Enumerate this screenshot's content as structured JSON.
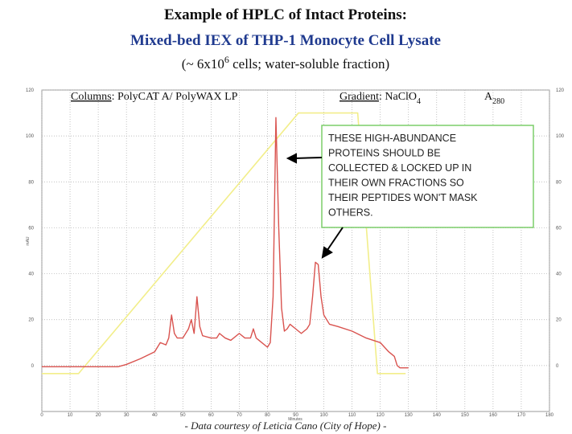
{
  "chart_data": {
    "type": "line",
    "title": "Example of HPLC of Intact Proteins:",
    "subtitle": "Mixed-bed IEX of THP-1 Monocyte Cell Lysate",
    "note": {
      "pre": "(~ 6x10",
      "sup": "6",
      "post": " cells; water-soluble fraction)"
    },
    "header": {
      "columns_label": "Columns",
      "columns_text": ": PolyCAT A/ PolyWAX LP",
      "gradient_label": "Gradient",
      "gradient_text": ": NaClO",
      "gradient_sub": "4",
      "absorbance": "A",
      "absorbance_sub": "280"
    },
    "annotation": [
      "THESE HIGH-ABUNDANCE",
      "PROTEINS SHOULD BE",
      "COLLECTED & LOCKED UP IN",
      "THEIR OWN FRACTIONS SO",
      "THEIR PEPTIDES WON'T MASK",
      "OTHERS."
    ],
    "x_label": "Minutes",
    "y_label": "mAU",
    "footer": "- Data courtesy of Leticia Cano (City of Hope) -",
    "xlim": [
      0,
      180
    ],
    "xticks": [
      0,
      10,
      20,
      30,
      40,
      50,
      60,
      70,
      80,
      90,
      100,
      110,
      120,
      130,
      140,
      150,
      160,
      170,
      180
    ],
    "ylim": [
      -20,
      120
    ],
    "yticks": [
      0,
      20,
      40,
      60,
      80,
      100,
      120
    ],
    "grid": true,
    "series": [
      {
        "name": "A280",
        "color": "#d9534f",
        "x": [
          0,
          10,
          20,
          27,
          30,
          35,
          40,
          42,
          44,
          45,
          46,
          47,
          48,
          50,
          52,
          53,
          54,
          55,
          56,
          57,
          60,
          62,
          63,
          65,
          67,
          70,
          72,
          74,
          75,
          76,
          78,
          80,
          81,
          82,
          83,
          84,
          85,
          86,
          87,
          88,
          90,
          92,
          94,
          95,
          96,
          97,
          98,
          99,
          100,
          102,
          105,
          110,
          115,
          120,
          123,
          125,
          126,
          127,
          130
        ],
        "values": [
          -0.5,
          -0.5,
          -0.5,
          -0.5,
          0.5,
          3,
          6,
          10,
          9,
          12,
          22,
          14,
          12,
          12,
          16,
          20,
          14,
          30,
          17,
          13,
          12,
          12,
          14,
          12,
          11,
          14,
          12,
          12,
          16,
          12,
          10,
          8,
          10,
          30,
          108,
          60,
          25,
          15,
          16,
          18,
          16,
          14,
          16,
          18,
          30,
          45,
          44,
          30,
          22,
          18,
          17,
          15,
          12,
          10,
          6,
          4,
          0,
          -1,
          -1
        ]
      },
      {
        "name": "NaClO4",
        "color": "#f2ee8a",
        "x": [
          0,
          13,
          91,
          112,
          119,
          129
        ],
        "values": [
          -3.5,
          -3.5,
          110,
          110,
          -3.5,
          -3.5
        ]
      }
    ]
  }
}
